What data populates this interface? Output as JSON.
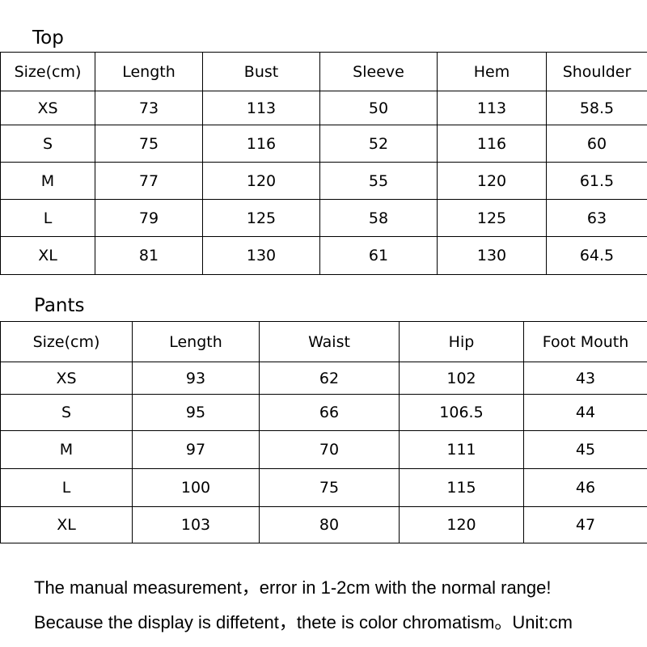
{
  "top": {
    "title": "Top",
    "headers": [
      "Size(cm)",
      "Length",
      "Bust",
      "Sleeve",
      "Hem",
      "Shoulder"
    ],
    "rows": [
      [
        "XS",
        "73",
        "113",
        "50",
        "113",
        "58.5"
      ],
      [
        "S",
        "75",
        "116",
        "52",
        "116",
        "60"
      ],
      [
        "M",
        "77",
        "120",
        "55",
        "120",
        "61.5"
      ],
      [
        "L",
        "79",
        "125",
        "58",
        "125",
        "63"
      ],
      [
        "XL",
        "81",
        "130",
        "61",
        "130",
        "64.5"
      ]
    ]
  },
  "pants": {
    "title": "Pants",
    "headers": [
      "Size(cm)",
      "Length",
      "Waist",
      "Hip",
      "Foot Mouth"
    ],
    "rows": [
      [
        "XS",
        "93",
        "62",
        "102",
        "43"
      ],
      [
        "S",
        "95",
        "66",
        "106.5",
        "44"
      ],
      [
        "M",
        "97",
        "70",
        "111",
        "45"
      ],
      [
        "L",
        "100",
        "75",
        "115",
        "46"
      ],
      [
        "XL",
        "103",
        "80",
        "120",
        "47"
      ]
    ]
  },
  "notes": [
    "The manual measurement，error in 1-2cm with the normal range!",
    "Because the display is diffetent，thete is color chromatism。Unit:cm"
  ]
}
